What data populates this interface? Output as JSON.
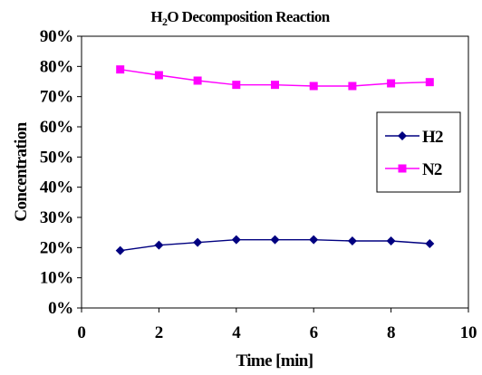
{
  "chart_data": {
    "type": "line",
    "title_parts": [
      "H",
      "2",
      "O Decomposition Reaction"
    ],
    "xlabel": "Time [min]",
    "ylabel": "Concentration",
    "xlim": [
      0,
      10
    ],
    "ylim": [
      0,
      90
    ],
    "x_ticks": [
      0,
      2,
      4,
      6,
      8,
      10
    ],
    "x_tick_labels": [
      "0",
      "2",
      "4",
      "6",
      "8",
      "10"
    ],
    "y_ticks": [
      0,
      10,
      20,
      30,
      40,
      50,
      60,
      70,
      80,
      90
    ],
    "y_tick_labels": [
      "0%",
      "10%",
      "20%",
      "30%",
      "40%",
      "50%",
      "60%",
      "70%",
      "80%",
      "90%"
    ],
    "grid": false,
    "legend_position": "right",
    "x": [
      1,
      2,
      3,
      4,
      5,
      6,
      7,
      8,
      9
    ],
    "series": [
      {
        "name": "H2",
        "color": "#000080",
        "marker": "diamond",
        "values": [
          19.0,
          20.8,
          21.7,
          22.6,
          22.6,
          22.6,
          22.2,
          22.2,
          21.3
        ]
      },
      {
        "name": "N2",
        "color": "#ff00ff",
        "marker": "square",
        "values": [
          79.0,
          77.1,
          75.3,
          73.9,
          73.9,
          73.5,
          73.5,
          74.4,
          74.8
        ]
      }
    ]
  }
}
